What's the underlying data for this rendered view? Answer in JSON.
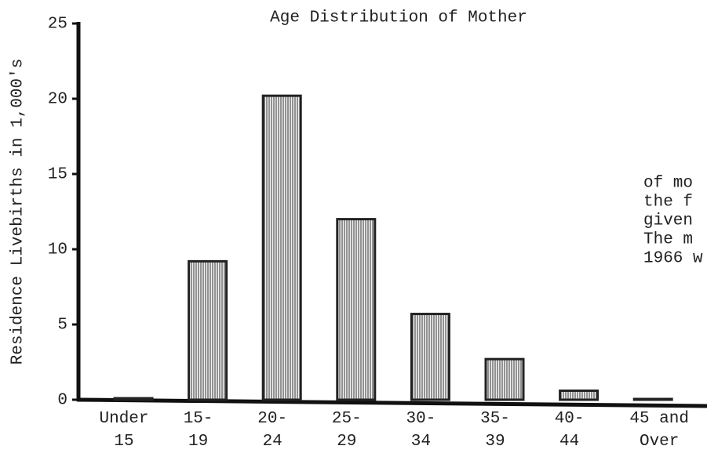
{
  "chart_data": {
    "type": "bar",
    "title": "Age Distribution of Mother",
    "y_label": "Residence Livebirths in 1,000's",
    "categories": [
      "Under\n15",
      "15-\n19",
      "20-\n24",
      "25-\n29",
      "30-\n34",
      "35-\n39",
      "40-\n44",
      "45 and\nOver"
    ],
    "values": [
      0.1,
      9.2,
      20.2,
      12.0,
      5.7,
      2.7,
      0.6,
      0.05
    ],
    "color": "#222222",
    "ylim": [
      0,
      25
    ],
    "yticks": [
      0,
      5,
      10,
      15,
      20,
      25
    ],
    "grid": false,
    "annotations": [
      "of mo",
      "the f",
      "given",
      "The m",
      "1966 w"
    ]
  }
}
